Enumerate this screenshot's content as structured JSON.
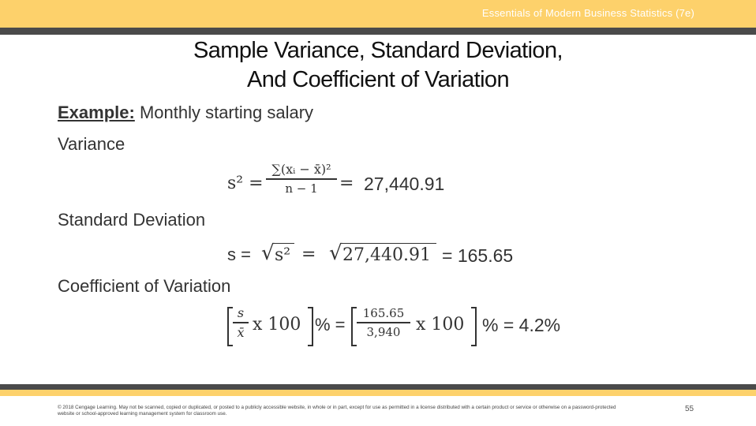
{
  "header": {
    "book_title": "Essentials of Modern Business Statistics (7e)"
  },
  "slide": {
    "title_line1": "Sample Variance, Standard Deviation,",
    "title_line2": "And Coefficient of Variation",
    "example_label": "Example:",
    "example_text": " Monthly starting salary",
    "variance_heading": "Variance",
    "variance_lhs": "s² =",
    "variance_numerator": "∑(xᵢ − x̄)²",
    "variance_denominator": "n − 1",
    "variance_equals": "=",
    "variance_value": "27,440.91",
    "std_heading": "Standard Deviation",
    "std_lhs": "s =",
    "std_sqrt_arg": "s²",
    "std_equals": "=",
    "std_sqrt_value": "27,440.91",
    "std_result": "= 165.65",
    "cv_heading": "Coefficient of Variation",
    "cv_num1": "s",
    "cv_den1": "x̄",
    "cv_times1": "x 100",
    "cv_mid": "% =",
    "cv_num2": "165.65",
    "cv_den2": "3,940",
    "cv_times2": "x 100",
    "cv_result": "% = 4.2%"
  },
  "footer": {
    "copyright": "© 2018 Cengage Learning. May not be scanned, copied or duplicated, or posted to a publicly accessible website, in whole or in part, except for use as permitted in a license distributed with a certain product or service or otherwise on a password-protected website or school-approved learning management system for classroom use.",
    "page_number": "55"
  },
  "colors": {
    "accent_yellow": "#fdd16b",
    "strip_gray": "#4a4a4a"
  }
}
